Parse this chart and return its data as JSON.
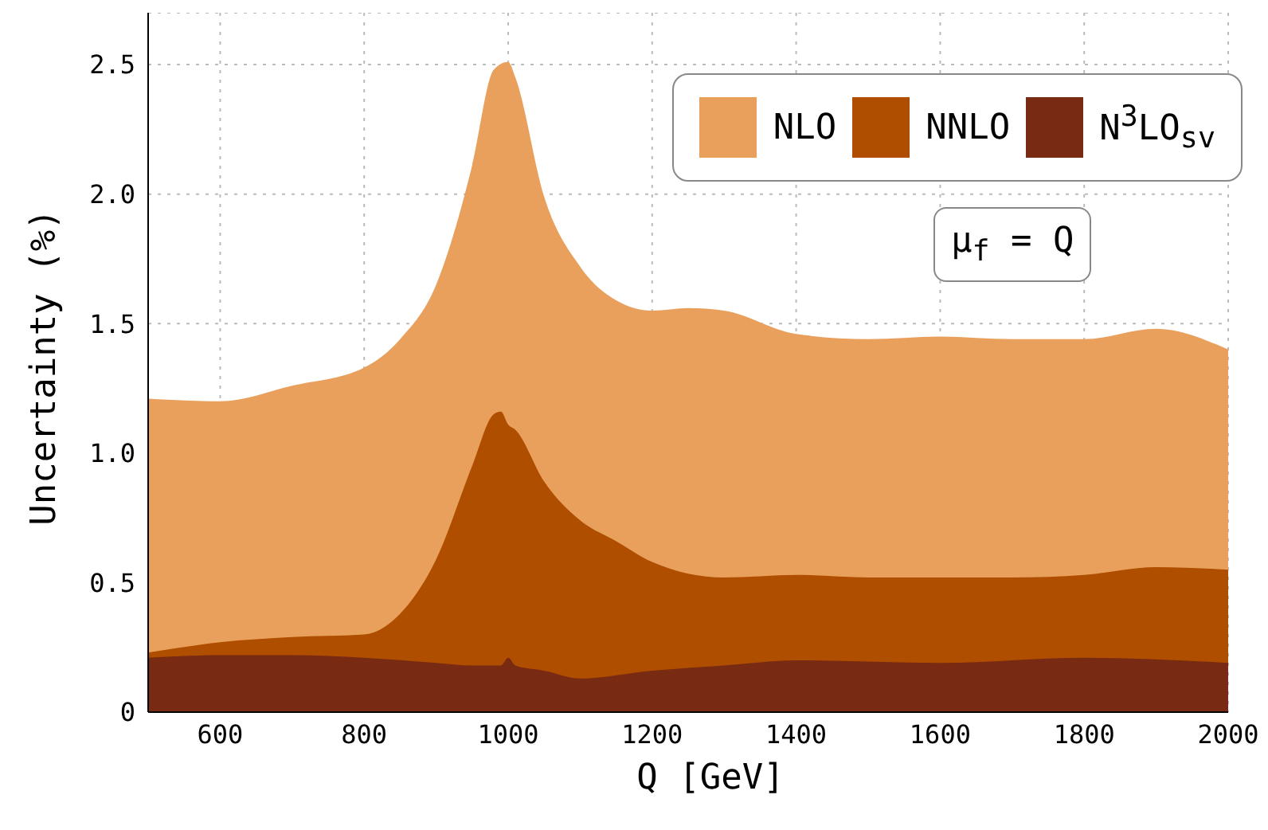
{
  "chart_data": {
    "type": "area",
    "xlabel": "Q [GeV]",
    "ylabel": "Uncertainty (%)",
    "xlim": [
      500,
      2000
    ],
    "xticks": [
      600,
      800,
      1000,
      1200,
      1400,
      1600,
      1800,
      2000
    ],
    "ylim": [
      0,
      2.7
    ],
    "yticks": [
      0,
      0.5,
      {
        "value": 1,
        "label": "1.0"
      },
      1.5,
      {
        "value": 2,
        "label": "2.0"
      },
      2.5
    ],
    "grid": true,
    "legend": "top right",
    "annotations": [
      "μ$_{f}$ = Q"
    ],
    "series": [
      {
        "name": "NLO",
        "color": "#e9a05c",
        "x": [
          500,
          600,
          700,
          800,
          850,
          900,
          950,
          980,
          1000,
          1010,
          1050,
          1100,
          1150,
          1200,
          1250,
          1300,
          1400,
          1500,
          1600,
          1700,
          1800,
          1900,
          2000
        ],
        "values": [
          1.21,
          1.2,
          1.26,
          1.33,
          1.44,
          1.65,
          2.11,
          2.48,
          2.51,
          2.45,
          1.99,
          1.72,
          1.59,
          1.55,
          1.56,
          1.55,
          1.46,
          1.44,
          1.45,
          1.44,
          1.44,
          1.48,
          1.4
        ]
      },
      {
        "name": "NNLO",
        "color": "#b04e00",
        "x": [
          500,
          600,
          700,
          800,
          850,
          900,
          950,
          980,
          990,
          1000,
          1010,
          1050,
          1100,
          1150,
          1200,
          1300,
          1400,
          1500,
          1600,
          1700,
          1800,
          1900,
          2000
        ],
        "values": [
          0.23,
          0.27,
          0.29,
          0.3,
          0.38,
          0.59,
          0.95,
          1.15,
          1.16,
          1.11,
          1.09,
          0.89,
          0.74,
          0.66,
          0.58,
          0.52,
          0.53,
          0.52,
          0.52,
          0.52,
          0.53,
          0.56,
          0.55
        ]
      },
      {
        "name": "N$^{3}$LO$_{sv}$",
        "color": "#782a12",
        "x": [
          500,
          600,
          700,
          800,
          900,
          950,
          990,
          1000,
          1010,
          1050,
          1100,
          1200,
          1300,
          1400,
          1600,
          1800,
          2000
        ],
        "values": [
          0.21,
          0.22,
          0.22,
          0.21,
          0.19,
          0.18,
          0.18,
          0.21,
          0.18,
          0.16,
          0.13,
          0.16,
          0.18,
          0.2,
          0.19,
          0.21,
          0.19
        ]
      }
    ]
  }
}
